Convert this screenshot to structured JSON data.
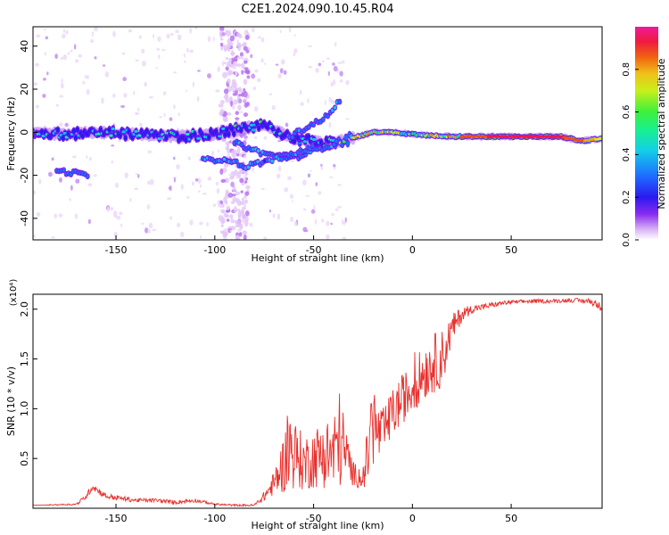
{
  "title": "C2E1.2024.090.10.45.R04",
  "colors": {
    "snr_line": "#e8302c",
    "colormap": [
      "#ffffff",
      "#e9d2f6",
      "#b46cf0",
      "#7a1cf0",
      "#2a1af0",
      "#1f6dff",
      "#12c4f0",
      "#19f0b0",
      "#3cf03c",
      "#b8f01a",
      "#f0e01a",
      "#f0a01a",
      "#f05010",
      "#f0184a",
      "#f01a9a"
    ]
  },
  "chart_data": [
    {
      "type": "heatmap",
      "name": "spectrogram",
      "xlabel": "Height of straight line (km)",
      "ylabel": "Frequency (Hz)",
      "xlim": [
        -192,
        96
      ],
      "ylim": [
        -50,
        49
      ],
      "xticks": [
        -150,
        -100,
        -50,
        0,
        50
      ],
      "xtick_labels": [
        "-150",
        "-100",
        "-50",
        "0",
        "50"
      ],
      "yticks": [
        -40,
        -20,
        0,
        20,
        40
      ],
      "ytick_labels": [
        "-40",
        "-20",
        "0",
        "20",
        "40"
      ],
      "colorbar": {
        "label": "Normalized spectral amplitude",
        "range": [
          0,
          1
        ],
        "ticks": [
          0.0,
          0.2,
          0.4,
          0.6,
          0.8
        ],
        "tick_labels": [
          "0.0",
          "0.2",
          "0.4",
          "0.6",
          "0.8"
        ]
      },
      "ridge": [
        {
          "x": -192,
          "f": 0,
          "amp": 0.35
        },
        {
          "x": -175,
          "f": -1,
          "amp": 0.4
        },
        {
          "x": -160,
          "f": 0,
          "amp": 0.38
        },
        {
          "x": -140,
          "f": -1,
          "amp": 0.4
        },
        {
          "x": -120,
          "f": -2,
          "amp": 0.4
        },
        {
          "x": -100,
          "f": -1,
          "amp": 0.38
        },
        {
          "x": -85,
          "f": 2,
          "amp": 0.4
        },
        {
          "x": -75,
          "f": 3,
          "amp": 0.42
        },
        {
          "x": -60,
          "f": -3,
          "amp": 0.38
        },
        {
          "x": -45,
          "f": -5,
          "amp": 0.4
        },
        {
          "x": -35,
          "f": -4,
          "amp": 0.5
        },
        {
          "x": -20,
          "f": 0,
          "amp": 0.75
        },
        {
          "x": -10,
          "f": 0,
          "amp": 0.6
        },
        {
          "x": 0,
          "f": -1,
          "amp": 0.55
        },
        {
          "x": 20,
          "f": -2,
          "amp": 0.7
        },
        {
          "x": 40,
          "f": -2,
          "amp": 0.8
        },
        {
          "x": 60,
          "f": -2,
          "amp": 0.85
        },
        {
          "x": 75,
          "f": -2,
          "amp": 0.8
        },
        {
          "x": 85,
          "f": -4,
          "amp": 0.75
        },
        {
          "x": 96,
          "f": -3,
          "amp": 0.6
        }
      ],
      "branches": [
        {
          "x": [
            -90,
            -75,
            -60,
            -48,
            -38
          ],
          "f": [
            -5,
            -10,
            -12,
            -8,
            -5
          ]
        },
        {
          "x": [
            -95,
            -85,
            -72,
            -60,
            -50
          ],
          "f": [
            -12,
            -16,
            -13,
            -10,
            -7
          ]
        },
        {
          "x": [
            -62,
            -52,
            -42,
            -36
          ],
          "f": [
            -2,
            3,
            8,
            16
          ]
        },
        {
          "x": [
            -180,
            -170,
            -164
          ],
          "f": [
            -18,
            -19,
            -20
          ]
        },
        {
          "x": [
            -106,
            -100,
            -94
          ],
          "f": [
            -13,
            -13,
            -12
          ]
        }
      ]
    },
    {
      "type": "line",
      "name": "snr",
      "xlabel": "Height of straight line (km)",
      "ylabel": "SNR (10 * v/v)",
      "y_multiplier": "(x10⁴)",
      "xlim": [
        -192,
        96
      ],
      "ylim": [
        0,
        2.15
      ],
      "xticks": [
        -150,
        -100,
        -50,
        0,
        50
      ],
      "xtick_labels": [
        "-150",
        "-100",
        "-50",
        "0",
        "50"
      ],
      "yticks": [
        0.5,
        1.0,
        1.5,
        2.0
      ],
      "ytick_labels": [
        "0.5",
        "1.0",
        "1.5",
        "2.0"
      ],
      "x": [
        -192,
        -170,
        -165,
        -162,
        -155,
        -140,
        -130,
        -120,
        -110,
        -100,
        -90,
        -80,
        -75,
        -70,
        -65,
        -62,
        -60,
        -55,
        -50,
        -45,
        -40,
        -37,
        -35,
        -30,
        -25,
        -22,
        -20,
        -18,
        -15,
        -10,
        -5,
        0,
        5,
        10,
        15,
        20,
        25,
        30,
        35,
        40,
        45,
        50,
        60,
        70,
        80,
        90,
        96
      ],
      "y": [
        0.03,
        0.04,
        0.12,
        0.22,
        0.12,
        0.08,
        0.08,
        0.06,
        0.08,
        0.04,
        0.03,
        0.03,
        0.12,
        0.25,
        0.45,
        0.6,
        0.55,
        0.45,
        0.5,
        0.55,
        0.55,
        0.7,
        0.6,
        0.35,
        0.3,
        0.6,
        0.9,
        0.75,
        0.75,
        0.95,
        1.1,
        1.2,
        1.35,
        1.45,
        1.5,
        1.8,
        1.95,
        2.0,
        2.02,
        2.04,
        2.06,
        2.07,
        2.08,
        2.08,
        2.09,
        2.08,
        2.02
      ],
      "noise": [
        0.0,
        0.01,
        0.03,
        0.04,
        0.03,
        0.02,
        0.02,
        0.02,
        0.02,
        0.01,
        0.01,
        0.01,
        0.05,
        0.12,
        0.3,
        0.45,
        0.35,
        0.28,
        0.3,
        0.35,
        0.4,
        0.5,
        0.4,
        0.12,
        0.12,
        0.35,
        0.5,
        0.3,
        0.25,
        0.25,
        0.25,
        0.25,
        0.28,
        0.3,
        0.3,
        0.15,
        0.08,
        0.04,
        0.03,
        0.03,
        0.02,
        0.02,
        0.02,
        0.02,
        0.02,
        0.03,
        0.04
      ]
    }
  ]
}
